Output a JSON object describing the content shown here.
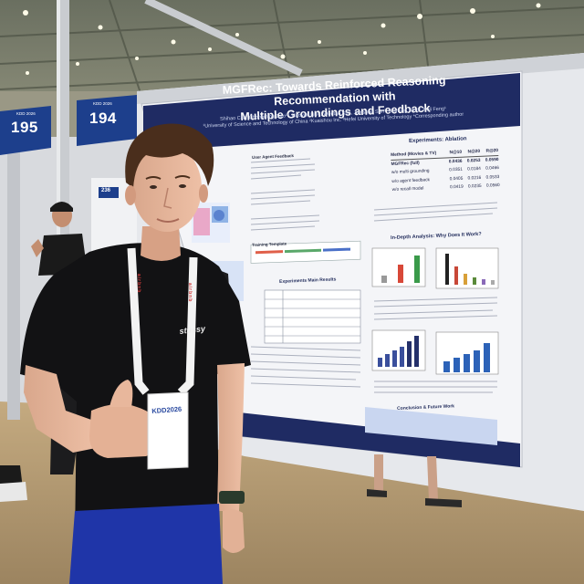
{
  "scene": {
    "description_free": true
  },
  "poster": {
    "title_line1": "MGFRec: Towards Reinforced Reasoning Recommendation with",
    "title_line2": "Multiple Groundings and Feedback",
    "authors": "Shihao Cai¹, Chongming Gao¹*, Haoyan Liu¹², Wentao Shi¹, Jianshan Sun³, Ruiming Tang², Fuli Feng¹",
    "affiliations": "¹University of Science and Technology of China  ²Kuaishou Inc.  ³Hefei University of Technology  *Corresponding author",
    "sections": {
      "ablation": "Experiments: Ablation",
      "in_depth": "In-Depth Analysis: Why Does It Work?",
      "main_results": "Experiments Main Results",
      "conclusion": "Conclusion & Future Work",
      "user_agent": "User Agent Feedback",
      "training": "Training Template"
    },
    "ablation_table": {
      "headers": [
        "Method (Movies & TV)",
        "N@10",
        "N@20",
        "R@20"
      ],
      "rows": [
        {
          "method": "MGFRec (full)",
          "values": [
            "0.0436",
            "0.0253",
            "0.0590"
          ]
        },
        {
          "method": "w/o multi grounding",
          "values": [
            "0.0351",
            "0.0184",
            "0.0466"
          ]
        },
        {
          "method": "w/o agent feedback",
          "values": [
            "0.0405",
            "0.0216",
            "0.0533"
          ]
        },
        {
          "method": "w/o recall model",
          "values": [
            "0.0419",
            "0.0235",
            "0.0560"
          ]
        }
      ]
    }
  },
  "signs": {
    "left_number": "195",
    "left_small": "KDD 2026",
    "right_number": "194",
    "right_small": "KDD 2026",
    "far_number": "236"
  },
  "badge": {
    "text": "KDD2026"
  },
  "shirt": {
    "text": "stüssy"
  },
  "lanyard": {
    "text": "airbnb"
  },
  "colors": {
    "poster_header": "#1f2b63",
    "poster_body": "#f4f5f8",
    "sign_blue": "#1d3f8c",
    "shirt": "#121214",
    "shorts": "#1f35a8",
    "floor": "#b59a72"
  }
}
